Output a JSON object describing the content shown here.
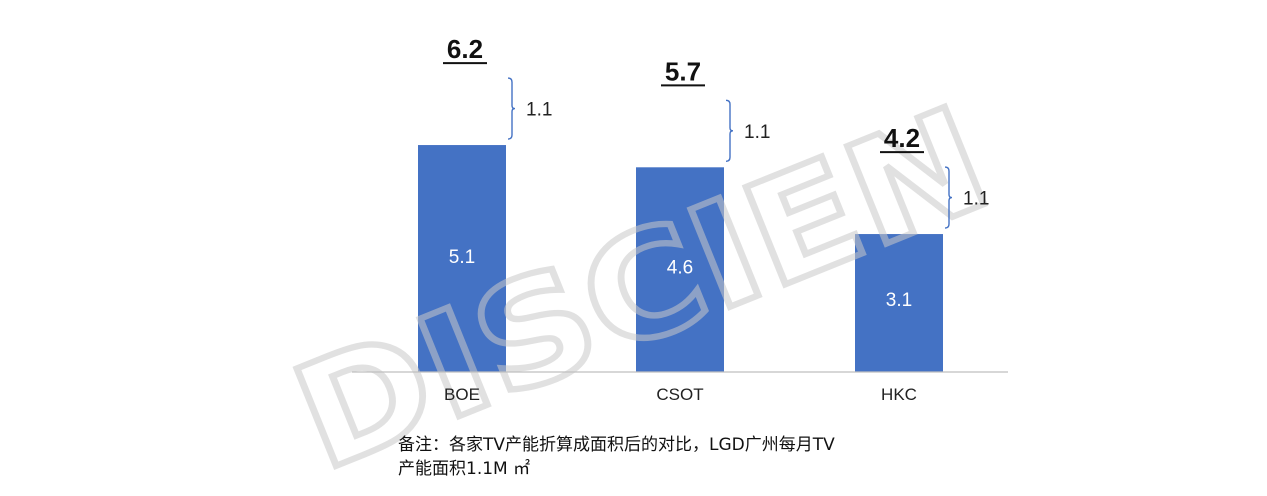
{
  "chart_data": {
    "type": "bar",
    "categories": [
      "BOE",
      "CSOT",
      "HKC"
    ],
    "values": [
      5.1,
      4.6,
      3.1
    ],
    "additions": [
      1.1,
      1.1,
      1.1
    ],
    "totals": [
      6.2,
      5.7,
      4.2
    ],
    "bar_labels": [
      "5.1",
      "4.6",
      "3.1"
    ],
    "addition_labels": [
      "1.1",
      "1.1",
      "1.1"
    ],
    "total_labels": [
      "6.2",
      "5.7",
      "4.2"
    ],
    "ylim": [
      0,
      7.2
    ],
    "bar_color": "#4472C4",
    "bracket_color": "#4472C4"
  },
  "watermark": "DISCIEN",
  "note": {
    "line1": "备注：各家TV产能折算成面积后的对比，LGD广州每月TV",
    "line2": "产能面积1.1M ㎡"
  }
}
